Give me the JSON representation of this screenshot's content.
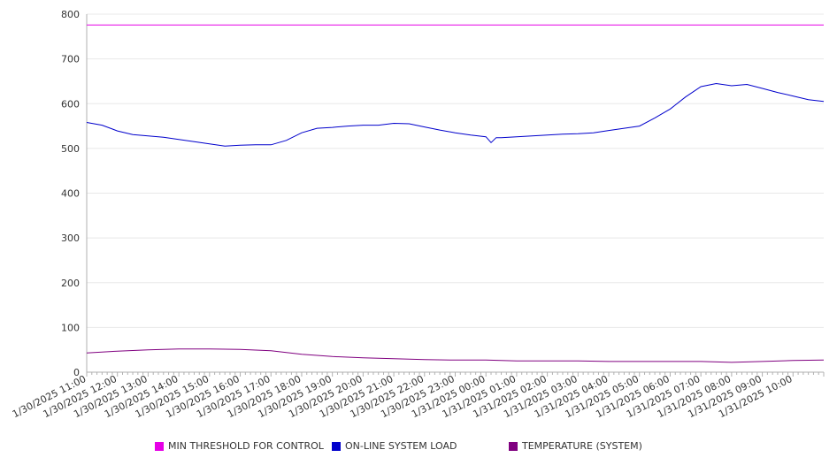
{
  "chart_data": {
    "type": "line",
    "title": "",
    "xlabel": "",
    "ylabel": "",
    "ylim": [
      0,
      800
    ],
    "yticks": [
      "0",
      "100",
      "200",
      "300",
      "400",
      "500",
      "600",
      "700",
      "800"
    ],
    "grid": "horizontal",
    "legend_position": "bottom",
    "x_tick_labels": [
      "1/30/2025 11:00",
      "1/30/2025 12:00",
      "1/30/2025 13:00",
      "1/30/2025 14:00",
      "1/30/2025 15:00",
      "1/30/2025 16:00",
      "1/30/2025 17:00",
      "1/30/2025 18:00",
      "1/30/2025 19:00",
      "1/30/2025 20:00",
      "1/30/2025 21:00",
      "1/30/2025 22:00",
      "1/30/2025 23:00",
      "1/31/2025 00:00",
      "1/31/2025 01:00",
      "1/31/2025 02:00",
      "1/31/2025 03:00",
      "1/31/2025 04:00",
      "1/31/2025 05:00",
      "1/31/2025 06:00",
      "1/31/2025 07:00",
      "1/31/2025 08:00",
      "1/31/2025 09:00",
      "1/31/2025 10:00"
    ],
    "series": [
      {
        "name": "MIN THRESHOLD FOR CONTROL",
        "color": "#e600e6",
        "x": [
          "1/30/2025 11:00",
          "1/31/2025 11:00"
        ],
        "values": [
          776,
          776
        ]
      },
      {
        "name": "ON-LINE SYSTEM LOAD",
        "color": "#0000cc",
        "x": [
          "1/30/2025 11:00",
          "1/30/2025 11:30",
          "1/30/2025 12:00",
          "1/30/2025 12:30",
          "1/30/2025 13:00",
          "1/30/2025 13:30",
          "1/30/2025 14:00",
          "1/30/2025 14:30",
          "1/30/2025 15:00",
          "1/30/2025 15:30",
          "1/30/2025 16:00",
          "1/30/2025 16:30",
          "1/30/2025 17:00",
          "1/30/2025 17:30",
          "1/30/2025 18:00",
          "1/30/2025 18:30",
          "1/30/2025 19:00",
          "1/30/2025 19:30",
          "1/30/2025 20:00",
          "1/30/2025 20:30",
          "1/30/2025 21:00",
          "1/30/2025 21:30",
          "1/30/2025 22:00",
          "1/30/2025 22:30",
          "1/30/2025 23:00",
          "1/30/2025 23:30",
          "1/31/2025 00:00",
          "1/31/2025 00:10",
          "1/31/2025 00:20",
          "1/31/2025 00:30",
          "1/31/2025 01:00",
          "1/31/2025 01:30",
          "1/31/2025 02:00",
          "1/31/2025 02:30",
          "1/31/2025 03:00",
          "1/31/2025 03:30",
          "1/31/2025 04:00",
          "1/31/2025 04:30",
          "1/31/2025 05:00",
          "1/31/2025 05:30",
          "1/31/2025 06:00",
          "1/31/2025 06:30",
          "1/31/2025 07:00",
          "1/31/2025 07:30",
          "1/31/2025 08:00",
          "1/31/2025 08:30",
          "1/31/2025 09:00",
          "1/31/2025 09:30",
          "1/31/2025 10:00",
          "1/31/2025 10:30",
          "1/31/2025 11:00"
        ],
        "values": [
          558,
          552,
          539,
          531,
          528,
          525,
          520,
          515,
          510,
          505,
          507,
          508,
          508,
          518,
          535,
          545,
          547,
          550,
          552,
          552,
          556,
          555,
          548,
          541,
          535,
          530,
          526,
          513,
          524,
          524,
          526,
          528,
          530,
          532,
          533,
          535,
          540,
          545,
          550,
          568,
          588,
          615,
          638,
          645,
          640,
          643,
          634,
          625,
          617,
          609,
          605
        ]
      },
      {
        "name": "TEMPERATURE (SYSTEM)",
        "color": "#800080",
        "x": [
          "1/30/2025 11:00",
          "1/30/2025 12:00",
          "1/30/2025 13:00",
          "1/30/2025 14:00",
          "1/30/2025 15:00",
          "1/30/2025 16:00",
          "1/30/2025 17:00",
          "1/30/2025 18:00",
          "1/30/2025 19:00",
          "1/30/2025 20:00",
          "1/30/2025 21:00",
          "1/30/2025 22:00",
          "1/30/2025 23:00",
          "1/31/2025 00:00",
          "1/31/2025 01:00",
          "1/31/2025 02:00",
          "1/31/2025 03:00",
          "1/31/2025 04:00",
          "1/31/2025 05:00",
          "1/31/2025 06:00",
          "1/31/2025 07:00",
          "1/31/2025 08:00",
          "1/31/2025 09:00",
          "1/31/2025 10:00",
          "1/31/2025 11:00"
        ],
        "values": [
          43,
          47,
          50,
          52,
          52,
          51,
          48,
          40,
          35,
          32,
          30,
          28,
          27,
          27,
          25,
          25,
          25,
          24,
          24,
          24,
          24,
          22,
          24,
          26,
          27
        ]
      }
    ]
  }
}
